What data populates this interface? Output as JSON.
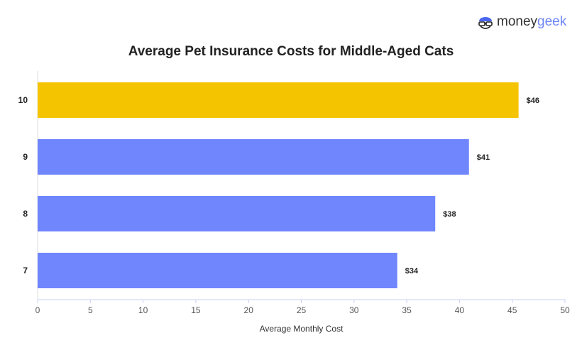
{
  "logo": {
    "text_main": "money",
    "text_accent": "geek"
  },
  "chart_data": {
    "type": "bar",
    "orientation": "horizontal",
    "title": "Average Pet Insurance Costs for Middle-Aged Cats",
    "xlabel": "Average Monthly Cost",
    "ylabel": "",
    "categories": [
      "10",
      "9",
      "8",
      "7"
    ],
    "values": [
      45.6,
      40.9,
      37.7,
      34.1
    ],
    "data_labels": [
      "$46",
      "$41",
      "$38",
      "$34"
    ],
    "colors": [
      "#f5c400",
      "#7086fd",
      "#7086fd",
      "#7086fd"
    ],
    "xlim": [
      0,
      50
    ],
    "xticks": [
      0,
      5,
      10,
      15,
      20,
      25,
      30,
      35,
      40,
      45,
      50
    ],
    "grid": false,
    "legend": "none"
  }
}
